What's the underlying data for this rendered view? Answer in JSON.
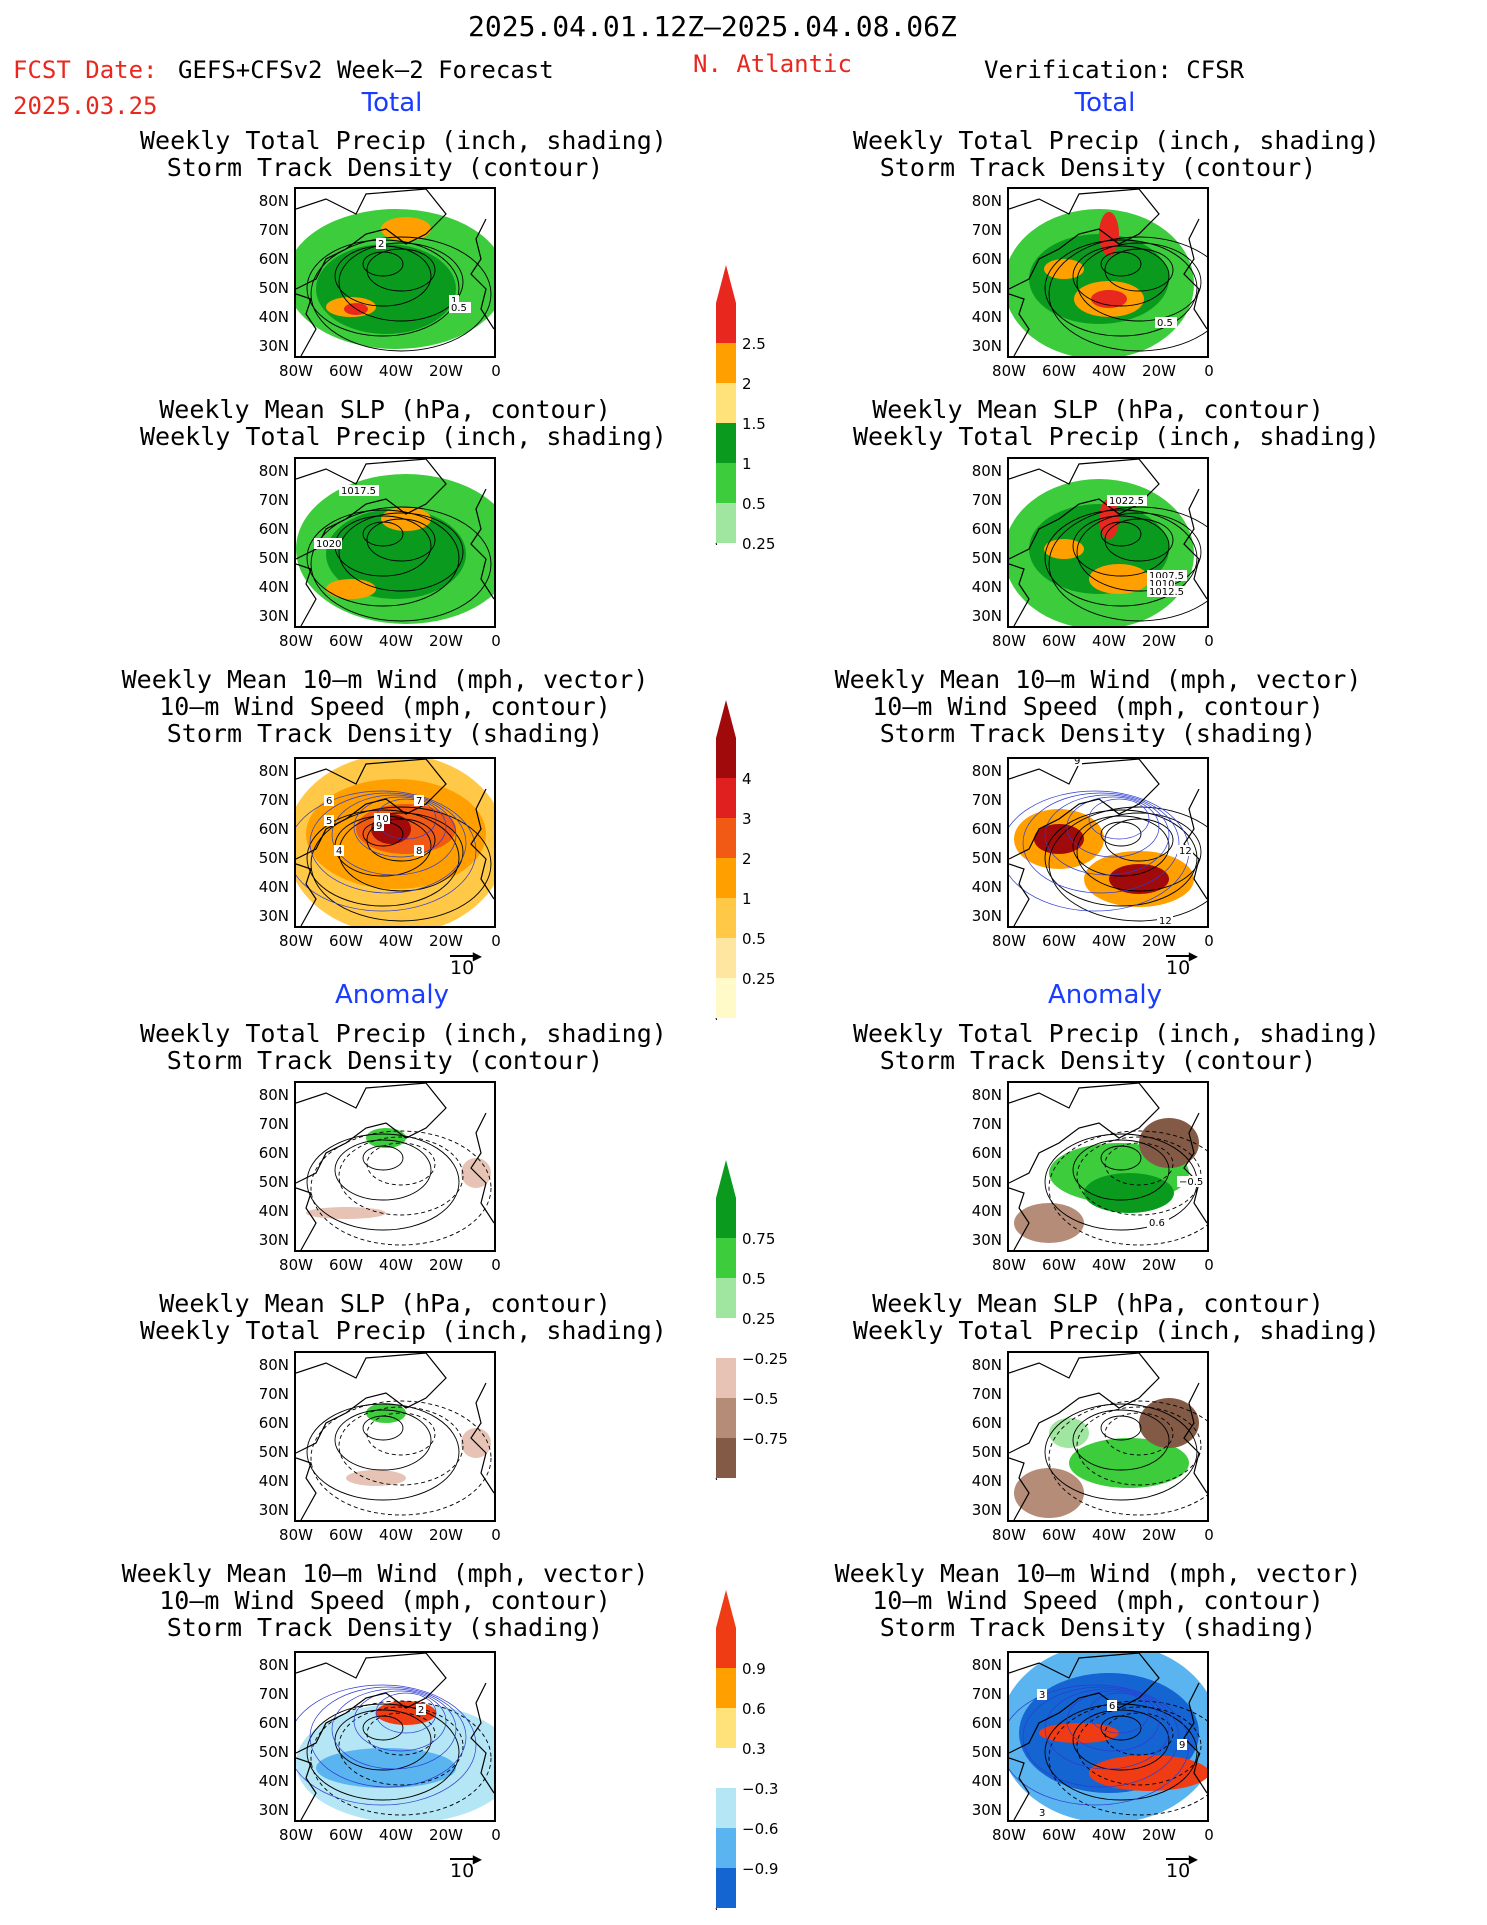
{
  "header": {
    "date_range": "2025.04.01.12Z–2025.04.08.06Z",
    "fcst_label": "FCST Date:",
    "fcst_date": "2025.03.25",
    "model": "GEFS+CFSv2 Week–2 Forecast",
    "region": "N. Atlantic",
    "verification": "Verification: CFSR"
  },
  "sections": {
    "total": "Total",
    "anomaly": "Anomaly"
  },
  "titles": {
    "precip_track": [
      "Weekly Total Precip (inch, shading)",
      "Storm Track Density (contour)"
    ],
    "slp_precip": [
      "Weekly Mean SLP (hPa, contour)",
      "Weekly Total Precip (inch, shading)"
    ],
    "wind": [
      "Weekly Mean 10–m Wind (mph, vector)",
      "10–m Wind Speed (mph, contour)",
      "Storm Track Density (shading)"
    ]
  },
  "axes": {
    "lat": [
      "80N",
      "70N",
      "60N",
      "50N",
      "40N",
      "30N"
    ],
    "lon": [
      "80W",
      "60W",
      "40W",
      "20W",
      "0"
    ]
  },
  "vector_ref": "10",
  "colorbars": {
    "precip_total": {
      "labels": [
        "2.5",
        "2",
        "1.5",
        "1",
        "0.5",
        "0.25"
      ],
      "colors": [
        "#e8281e",
        "#ffa000",
        "#ffe27a",
        "#0a9b1e",
        "#3ccc3c",
        "#a0e6a0"
      ]
    },
    "track_total": {
      "labels": [
        "4",
        "3",
        "2",
        "1",
        "0.5",
        "0.25"
      ],
      "colors": [
        "#a00a0a",
        "#e0201e",
        "#f05a14",
        "#ffa000",
        "#ffc846",
        "#ffe6a0",
        "#fffac8"
      ]
    },
    "precip_anom": {
      "labels": [
        "0.75",
        "0.5",
        "0.25",
        "−0.25",
        "−0.5",
        "−0.75"
      ],
      "colors": [
        "#0a9b1e",
        "#3ccc3c",
        "#a0e6a0",
        "#ffffff",
        "#e6c3b4",
        "#b48c78",
        "#825a46"
      ]
    },
    "track_anom": {
      "labels": [
        "0.9",
        "0.6",
        "0.3",
        "−0.3",
        "−0.6",
        "−0.9"
      ],
      "colors": [
        "#f03c14",
        "#ffa000",
        "#ffe27a",
        "#ffffff",
        "#b4e6f5",
        "#5ab4f0",
        "#1464d2"
      ]
    }
  },
  "contour_labels": {
    "l_precip_total": [
      "2",
      "1",
      "0.5"
    ],
    "r_precip_total": [
      "0.5"
    ],
    "l_slp_total": [
      "1017.5",
      "1020"
    ],
    "r_slp_total": [
      "1022.5",
      "1007.5",
      "1010",
      "1012.5"
    ],
    "l_wind_total": [
      "10",
      "8",
      "7",
      "6",
      "5",
      "4",
      "9"
    ],
    "r_wind_total": [
      "9",
      "12",
      "12"
    ],
    "r_precip_anom": [
      "−0.5",
      "0.6"
    ],
    "l_wind_anom": [
      "2"
    ],
    "r_wind_anom": [
      "3",
      "9",
      "3",
      "6"
    ]
  }
}
